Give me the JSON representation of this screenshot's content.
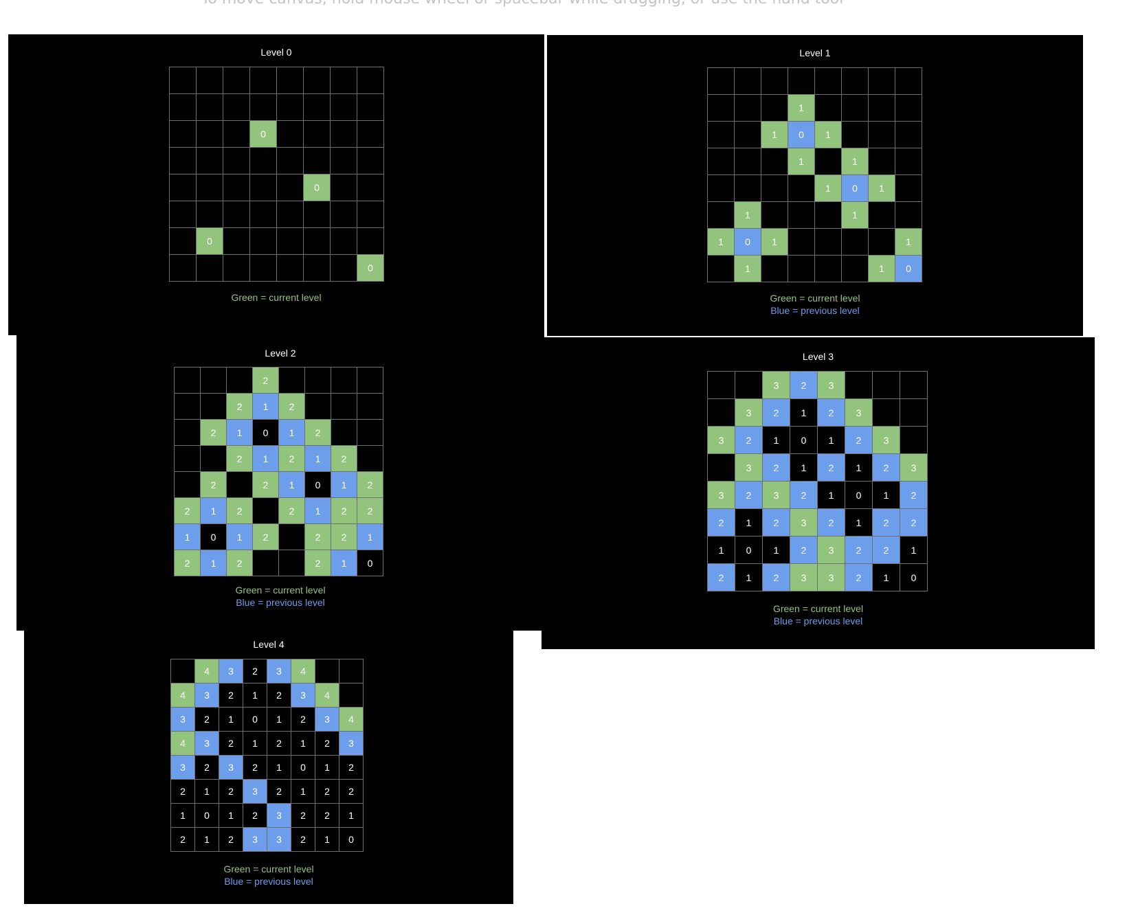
{
  "canvas": {
    "hint": "To move canvas, hold mouse wheel or spacebar while dragging, or use the hand tool"
  },
  "colors": {
    "background": "#000000",
    "grid_line": "#6e6e6e",
    "green": "#93c47d",
    "blue": "#6d9eeb",
    "text": "#ffffff"
  },
  "panels": [
    {
      "id": "level-0",
      "title": "Level 0",
      "legend": [
        "Green = current level"
      ],
      "grid": [
        [
          null,
          null,
          null,
          null,
          null,
          null,
          null,
          null
        ],
        [
          null,
          null,
          null,
          null,
          null,
          null,
          null,
          null
        ],
        [
          null,
          null,
          null,
          "G0",
          null,
          null,
          null,
          null
        ],
        [
          null,
          null,
          null,
          null,
          null,
          null,
          null,
          null
        ],
        [
          null,
          null,
          null,
          null,
          null,
          "G0",
          null,
          null
        ],
        [
          null,
          null,
          null,
          null,
          null,
          null,
          null,
          null
        ],
        [
          null,
          "G0",
          null,
          null,
          null,
          null,
          null,
          null
        ],
        [
          null,
          null,
          null,
          null,
          null,
          null,
          null,
          "G0"
        ]
      ]
    },
    {
      "id": "level-1",
      "title": "Level 1",
      "legend": [
        "Green = current level",
        "Blue = previous level"
      ],
      "grid": [
        [
          null,
          null,
          null,
          null,
          null,
          null,
          null,
          null
        ],
        [
          null,
          null,
          null,
          "G1",
          null,
          null,
          null,
          null
        ],
        [
          null,
          null,
          "G1",
          "B0",
          "G1",
          null,
          null,
          null
        ],
        [
          null,
          null,
          null,
          "G1",
          null,
          "G1",
          null,
          null
        ],
        [
          null,
          null,
          null,
          null,
          "G1",
          "B0",
          "G1",
          null
        ],
        [
          null,
          "G1",
          null,
          null,
          null,
          "G1",
          null,
          null
        ],
        [
          "G1",
          "B0",
          "G1",
          null,
          null,
          null,
          null,
          "G1"
        ],
        [
          null,
          "G1",
          null,
          null,
          null,
          null,
          "G1",
          "B0"
        ]
      ]
    },
    {
      "id": "level-2",
      "title": "Level 2",
      "legend": [
        "Green = current level",
        "Blue = previous level"
      ],
      "grid": [
        [
          null,
          null,
          null,
          "G2",
          null,
          null,
          null,
          null
        ],
        [
          null,
          null,
          "G2",
          "B1",
          "G2",
          null,
          null,
          null
        ],
        [
          null,
          "G2",
          "B1",
          "K0",
          "B1",
          "G2",
          null,
          null
        ],
        [
          null,
          null,
          "G2",
          "B1",
          "G2",
          "B1",
          "G2",
          null
        ],
        [
          null,
          "G2",
          null,
          "G2",
          "B1",
          "K0",
          "B1",
          "G2"
        ],
        [
          "G2",
          "B1",
          "G2",
          null,
          "G2",
          "B1",
          "G2",
          "G2"
        ],
        [
          "B1",
          "K0",
          "B1",
          "G2",
          null,
          "G2",
          "G2",
          "B1"
        ],
        [
          "G2",
          "B1",
          "G2",
          null,
          null,
          "G2",
          "B1",
          "K0"
        ]
      ]
    },
    {
      "id": "level-3",
      "title": "Level 3",
      "legend": [
        "Green = current level",
        "Blue = previous level"
      ],
      "grid": [
        [
          null,
          null,
          "G3",
          "B2",
          "G3",
          null,
          null,
          null
        ],
        [
          null,
          "G3",
          "B2",
          "K1",
          "B2",
          "G3",
          null,
          null
        ],
        [
          "G3",
          "B2",
          "K1",
          "K0",
          "K1",
          "B2",
          "G3",
          null
        ],
        [
          null,
          "G3",
          "B2",
          "K1",
          "B2",
          "K1",
          "B2",
          "G3"
        ],
        [
          "G3",
          "B2",
          "G3",
          "B2",
          "K1",
          "K0",
          "K1",
          "B2"
        ],
        [
          "B2",
          "K1",
          "B2",
          "G3",
          "B2",
          "K1",
          "B2",
          "B2"
        ],
        [
          "K1",
          "K0",
          "K1",
          "B2",
          "G3",
          "B2",
          "B2",
          "K1"
        ],
        [
          "B2",
          "K1",
          "B2",
          "G3",
          "G3",
          "B2",
          "K1",
          "K0"
        ]
      ]
    },
    {
      "id": "level-4",
      "title": "Level 4",
      "legend": [
        "Green = current level",
        "Blue = previous level"
      ],
      "grid": [
        [
          null,
          "G4",
          "B3",
          "K2",
          "B3",
          "G4",
          null,
          null
        ],
        [
          "G4",
          "B3",
          "K2",
          "K1",
          "K2",
          "B3",
          "G4",
          null
        ],
        [
          "B3",
          "K2",
          "K1",
          "K0",
          "K1",
          "K2",
          "B3",
          "G4"
        ],
        [
          "G4",
          "B3",
          "K2",
          "K1",
          "K2",
          "K1",
          "K2",
          "B3"
        ],
        [
          "B3",
          "K2",
          "B3",
          "K2",
          "K1",
          "K0",
          "K1",
          "K2"
        ],
        [
          "K2",
          "K1",
          "K2",
          "B3",
          "K2",
          "K1",
          "K2",
          "K2"
        ],
        [
          "K1",
          "K0",
          "K1",
          "K2",
          "B3",
          "K2",
          "K2",
          "K1"
        ],
        [
          "K2",
          "K1",
          "K2",
          "B3",
          "B3",
          "K2",
          "K1",
          "K0"
        ]
      ]
    }
  ]
}
